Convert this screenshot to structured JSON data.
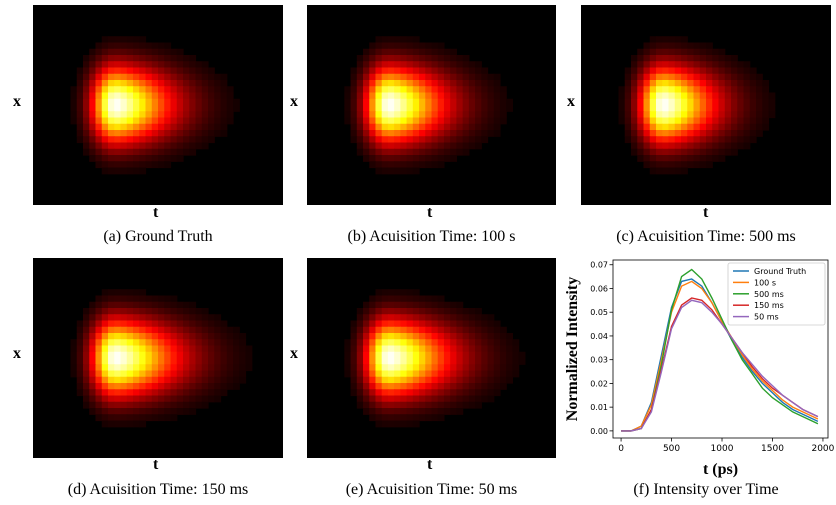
{
  "heatmap_axes": {
    "y": "x",
    "x": "t"
  },
  "panels": [
    {
      "caption": "(a) Ground Truth",
      "spread": 1.0,
      "peak": 1.0
    },
    {
      "caption": "(b) Acuisition Time: 100 s",
      "spread": 1.0,
      "peak": 1.0
    },
    {
      "caption": "(c) Acuisition Time: 500 ms",
      "spread": 0.92,
      "peak": 1.0
    },
    {
      "caption": "(d) Acuisition Time: 150 ms",
      "spread": 1.12,
      "peak": 1.0
    },
    {
      "caption": "(e) Acuisition Time: 50 ms",
      "spread": 1.1,
      "peak": 1.0
    }
  ],
  "plot_caption": "(f) Intensity over Time",
  "chart_data": {
    "type": "line",
    "xlabel": "t (ps)",
    "ylabel": "Normalized Intensity",
    "xlim": [
      -80,
      2050
    ],
    "ylim": [
      -0.003,
      0.072
    ],
    "xticks": [
      0,
      500,
      1000,
      1500,
      2000
    ],
    "yticks": [
      0.0,
      0.01,
      0.02,
      0.03,
      0.04,
      0.05,
      0.06,
      0.07
    ],
    "ytick_labels": [
      "0.00",
      "0.01",
      "0.02",
      "0.03",
      "0.04",
      "0.05",
      "0.06",
      "0.07"
    ],
    "legend_position": "top-right",
    "x": [
      0,
      100,
      200,
      300,
      400,
      500,
      600,
      700,
      800,
      900,
      1000,
      1100,
      1200,
      1300,
      1400,
      1500,
      1600,
      1700,
      1800,
      1900,
      1950
    ],
    "series": [
      {
        "name": "Ground Truth",
        "color": "#1f77b4",
        "values": [
          0,
          0,
          0.002,
          0.012,
          0.032,
          0.052,
          0.063,
          0.064,
          0.061,
          0.054,
          0.046,
          0.038,
          0.031,
          0.025,
          0.02,
          0.016,
          0.012,
          0.009,
          0.007,
          0.005,
          0.004
        ]
      },
      {
        "name": "100 s",
        "color": "#ff7f0e",
        "values": [
          0,
          0,
          0.002,
          0.011,
          0.03,
          0.05,
          0.061,
          0.063,
          0.06,
          0.054,
          0.046,
          0.039,
          0.032,
          0.026,
          0.021,
          0.017,
          0.013,
          0.01,
          0.008,
          0.006,
          0.005
        ]
      },
      {
        "name": "500 ms",
        "color": "#2ca02c",
        "values": [
          0,
          0,
          0.001,
          0.009,
          0.028,
          0.051,
          0.065,
          0.068,
          0.064,
          0.056,
          0.047,
          0.038,
          0.03,
          0.024,
          0.018,
          0.014,
          0.011,
          0.008,
          0.006,
          0.004,
          0.003
        ]
      },
      {
        "name": "150 ms",
        "color": "#d62728",
        "values": [
          0,
          0,
          0.001,
          0.009,
          0.026,
          0.044,
          0.053,
          0.056,
          0.055,
          0.051,
          0.045,
          0.039,
          0.033,
          0.027,
          0.022,
          0.018,
          0.015,
          0.012,
          0.009,
          0.007,
          0.006
        ]
      },
      {
        "name": "50 ms",
        "color": "#9467bd",
        "values": [
          0,
          0,
          0.001,
          0.008,
          0.025,
          0.043,
          0.052,
          0.055,
          0.054,
          0.05,
          0.045,
          0.039,
          0.033,
          0.028,
          0.023,
          0.019,
          0.015,
          0.012,
          0.009,
          0.007,
          0.006
        ]
      }
    ]
  }
}
